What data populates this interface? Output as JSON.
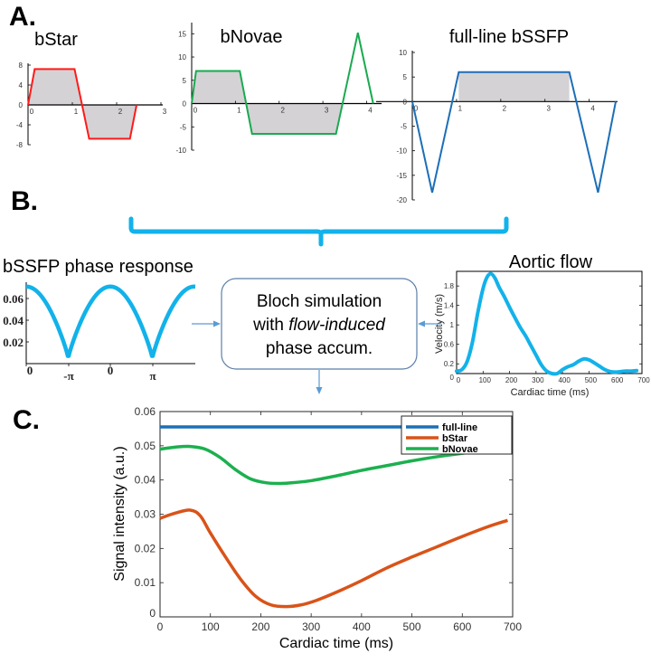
{
  "labels": {
    "panel_a": "A.",
    "panel_b": "B.",
    "panel_c": "C."
  },
  "flow_box": {
    "line1": "Bloch simulation",
    "line2_prefix": "with ",
    "line2_italic": "flow-induced",
    "line3": "phase accum."
  },
  "colors": {
    "bstar": "#ff1a1a",
    "bnovae": "#1aaa50",
    "fullline": "#1c6fb8",
    "cyan": "#12b2ea",
    "fill_gray": "#d4d2d4",
    "c_fullline": "#1a6fb5",
    "c_bstar": "#d95319",
    "c_bnovae": "#1cb04f",
    "arrow": "#5b9bd5"
  },
  "chart_data": [
    {
      "id": "bstar-gradient",
      "type": "line",
      "title": "bStar",
      "x": [
        0,
        0.15,
        1.05,
        1.38,
        2.3,
        2.45
      ],
      "y": [
        0,
        7.2,
        7.2,
        -6.8,
        -6.8,
        0
      ],
      "fill_to_zero": true,
      "xlim": [
        0,
        3
      ],
      "ylim": [
        -8,
        8
      ],
      "xticks": [
        0,
        1,
        2,
        3
      ],
      "yticks": [
        8,
        4,
        0,
        -4,
        -8
      ]
    },
    {
      "id": "bnovae-gradient",
      "type": "line",
      "title": "bNovae",
      "x": [
        0,
        0.1,
        1.1,
        1.38,
        3.3,
        3.8,
        4.15
      ],
      "y": [
        0,
        7,
        7,
        -6.5,
        -6.5,
        15.2,
        0
      ],
      "fill_segments": [
        [
          0,
          3.44
        ]
      ],
      "xlim": [
        0,
        4.3
      ],
      "ylim": [
        -10,
        17
      ],
      "xticks": [
        0,
        1,
        2,
        3,
        4
      ],
      "yticks": [
        15,
        10,
        5,
        0,
        -5,
        -10
      ]
    },
    {
      "id": "fullline-gradient",
      "type": "line",
      "title": "full-line bSSFP",
      "x": [
        0,
        0.45,
        1.05,
        3.55,
        4.2,
        4.6
      ],
      "y": [
        0,
        -18.5,
        6,
        6,
        -18.5,
        0
      ],
      "fill_range": [
        1.05,
        3.55
      ],
      "xlim": [
        0,
        4.6
      ],
      "ylim": [
        -20,
        10
      ],
      "xticks": [
        0,
        1,
        2,
        3,
        4
      ],
      "yticks": [
        10,
        5,
        0,
        -5,
        -10,
        -15,
        -20
      ]
    },
    {
      "id": "phase-response",
      "type": "line",
      "title": "bSSFP phase response",
      "xtick_labels": [
        "0",
        "-π",
        "0",
        "π"
      ],
      "yticks": [
        0.06,
        0.04,
        0.02
      ],
      "ylim": [
        0,
        0.075
      ],
      "peak": 0.071,
      "trough": 0.005,
      "x_units_periods": 2
    },
    {
      "id": "aortic-flow",
      "type": "line",
      "title": "Aortic flow",
      "xlabel": "Cardiac time (ms)",
      "ylabel": "Velocity (m/s)",
      "xlim": [
        0,
        700
      ],
      "ylim": [
        0,
        2.1
      ],
      "xticks": [
        0,
        100,
        200,
        300,
        400,
        500,
        600,
        700
      ],
      "yticks": [
        0,
        0.2,
        0.6,
        1,
        1.4,
        1.8
      ],
      "x": [
        0,
        20,
        40,
        60,
        80,
        100,
        115,
        130,
        145,
        160,
        180,
        200,
        220,
        240,
        260,
        280,
        300,
        320,
        340,
        360,
        380,
        400,
        420,
        440,
        460,
        480,
        500,
        520,
        540,
        560,
        580,
        600,
        620,
        640,
        660,
        680
      ],
      "y": [
        0.05,
        0.08,
        0.25,
        0.65,
        1.25,
        1.75,
        1.98,
        2.05,
        1.96,
        1.78,
        1.58,
        1.36,
        1.15,
        0.95,
        0.78,
        0.58,
        0.38,
        0.18,
        0.05,
        0.0,
        0.0,
        0.08,
        0.14,
        0.18,
        0.25,
        0.3,
        0.28,
        0.22,
        0.15,
        0.08,
        0.04,
        0.03,
        0.04,
        0.05,
        0.05,
        0.06
      ]
    },
    {
      "id": "signal-intensity",
      "type": "line",
      "xlabel": "Cardiac time (ms)",
      "ylabel": "Signal intensity (a.u.)",
      "xlim": [
        0,
        700
      ],
      "ylim": [
        0,
        0.06
      ],
      "xticks": [
        0,
        100,
        200,
        300,
        400,
        500,
        600,
        700
      ],
      "yticks": [
        0,
        0.01,
        0.02,
        0.03,
        0.04,
        0.05,
        0.06
      ],
      "legend": "top-right",
      "series": [
        {
          "name": "full-line",
          "x": [
            0,
            690
          ],
          "y": [
            0.0555,
            0.0555
          ]
        },
        {
          "name": "bStar",
          "x": [
            0,
            30,
            60,
            80,
            100,
            130,
            160,
            190,
            220,
            250,
            280,
            310,
            350,
            400,
            450,
            500,
            550,
            600,
            650,
            690
          ],
          "y": [
            0.0288,
            0.0303,
            0.0312,
            0.0295,
            0.0245,
            0.0175,
            0.011,
            0.006,
            0.0035,
            0.003,
            0.0035,
            0.0048,
            0.0072,
            0.0106,
            0.0143,
            0.0175,
            0.0205,
            0.0235,
            0.0263,
            0.0282
          ]
        },
        {
          "name": "bNovae",
          "x": [
            0,
            30,
            60,
            90,
            120,
            150,
            180,
            210,
            240,
            270,
            300,
            350,
            400,
            450,
            500,
            550,
            600,
            650,
            690
          ],
          "y": [
            0.049,
            0.0496,
            0.0498,
            0.049,
            0.0465,
            0.043,
            0.0403,
            0.0392,
            0.039,
            0.0393,
            0.0398,
            0.0412,
            0.0428,
            0.0442,
            0.0456,
            0.0468,
            0.0478,
            0.0486,
            0.049
          ]
        }
      ]
    }
  ]
}
